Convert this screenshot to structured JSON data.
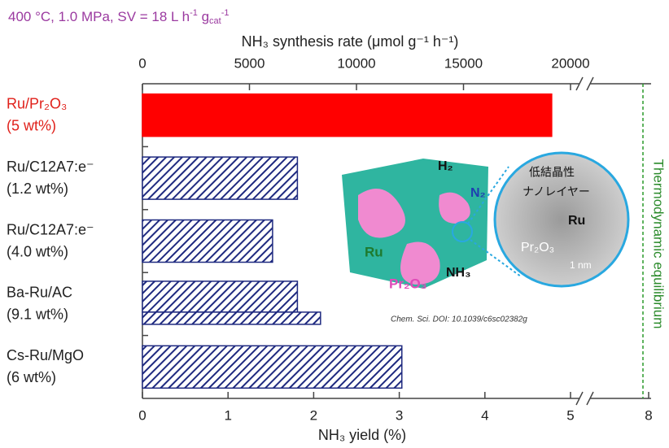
{
  "chart_data": {
    "type": "bar",
    "orientation": "horizontal",
    "title": [
      "400 °C, 1.0 MPa, SV = 18 L h",
      "-1",
      " g",
      "cat",
      "-1"
    ],
    "categories": [
      [
        "Ru/Pr₂O₃",
        "(5 wt%)"
      ],
      [
        "Ru/C12A7:e⁻",
        "(1.2 wt%)"
      ],
      [
        "Ru/C12A7:e⁻",
        "(4.0 wt%)"
      ],
      [
        "Ba-Ru/AC",
        "(9.1 wt%)"
      ],
      [
        "Cs-Ru/MgO",
        "(6 wt%)"
      ]
    ],
    "values": [
      4.78,
      1.81,
      1.52,
      [
        1.81,
        2.08
      ],
      3.03
    ],
    "colors": [
      "#ff0000",
      "#1f2a80",
      "#1f2a80",
      "#1f2a80",
      "#1f2a80"
    ],
    "hatched": [
      false,
      true,
      true,
      true,
      true
    ],
    "label_colors": [
      "#e0201a",
      "#222222",
      "#222222",
      "#222222",
      "#222222"
    ],
    "xlabel": "NH₃ yield (%)",
    "xlim": [
      0,
      8
    ],
    "xticks": [
      0,
      1,
      2,
      3,
      4,
      5,
      8
    ],
    "axis_break": true,
    "x2label": "NH₃ synthesis rate (μmol g⁻¹ h⁻¹)",
    "x2lim": [
      0,
      20000
    ],
    "x2ticks": [
      0,
      5000,
      10000,
      15000,
      20000
    ],
    "reference_label": "Thermodynamic  equilibrium",
    "inset": {
      "h2": "H₂",
      "n2": "N₂",
      "ru": "Ru",
      "nh3": "NH₃",
      "pr2o3": "Pr₂O₃",
      "zoom_line1": "低結晶性",
      "zoom_line2": "ナノレイヤー",
      "zoom_ru": "Ru",
      "zoom_pr2o3": "Pr₂O₃",
      "scale": "1 nm",
      "citation": "Chem. Sci. DOI: 10.1039/c6sc02382g"
    }
  }
}
